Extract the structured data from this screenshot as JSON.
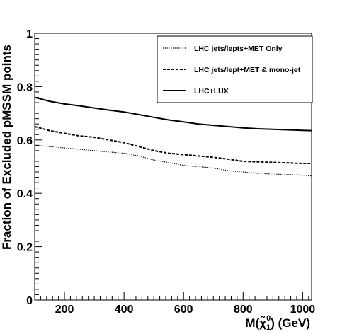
{
  "chart_data": {
    "type": "line",
    "xlabel": "M(χ̃",
    "xlabel_sub": "1",
    "xlabel_sup": "0",
    "xlabel_suffix": ") (GeV)",
    "ylabel": "Fraction of Excluded pMSSM points",
    "xlim": [
      100,
      1030
    ],
    "ylim": [
      0,
      1
    ],
    "x_ticks": [
      200,
      400,
      600,
      800,
      1000
    ],
    "y_ticks": [
      {
        "value": 0,
        "label": "0"
      },
      {
        "value": 0.2,
        "label": "0.2"
      },
      {
        "value": 0.4,
        "label": "0.4"
      },
      {
        "value": 0.6,
        "label": "0.6"
      },
      {
        "value": 0.8,
        "label": "0.8"
      },
      {
        "value": 1,
        "label": "1"
      }
    ],
    "grid": false,
    "legend_position": "top-right",
    "series": [
      {
        "name": "LHC jets/lepts+MET Only",
        "style": "dotted",
        "x": [
          100,
          150,
          200,
          250,
          300,
          350,
          400,
          450,
          500,
          550,
          600,
          650,
          700,
          750,
          800,
          850,
          900,
          950,
          1000,
          1030
        ],
        "values": [
          0.58,
          0.575,
          0.57,
          0.565,
          0.56,
          0.555,
          0.55,
          0.54,
          0.525,
          0.515,
          0.505,
          0.5,
          0.495,
          0.485,
          0.48,
          0.475,
          0.472,
          0.47,
          0.468,
          0.465
        ]
      },
      {
        "name": "LHC jets/lept+MET & mono-jet",
        "style": "dashed",
        "x": [
          100,
          150,
          200,
          250,
          300,
          350,
          400,
          450,
          500,
          550,
          600,
          650,
          700,
          750,
          800,
          850,
          900,
          950,
          1000,
          1030
        ],
        "values": [
          0.65,
          0.635,
          0.625,
          0.615,
          0.61,
          0.6,
          0.59,
          0.575,
          0.56,
          0.55,
          0.545,
          0.54,
          0.535,
          0.528,
          0.52,
          0.518,
          0.516,
          0.514,
          0.512,
          0.512
        ]
      },
      {
        "name": "LHC+LUX",
        "style": "solid",
        "x": [
          100,
          150,
          200,
          250,
          300,
          350,
          400,
          450,
          500,
          550,
          600,
          650,
          700,
          750,
          800,
          850,
          900,
          950,
          1000,
          1030
        ],
        "values": [
          0.76,
          0.745,
          0.735,
          0.728,
          0.72,
          0.712,
          0.705,
          0.695,
          0.685,
          0.675,
          0.668,
          0.66,
          0.655,
          0.65,
          0.645,
          0.642,
          0.64,
          0.638,
          0.636,
          0.635
        ]
      }
    ]
  }
}
